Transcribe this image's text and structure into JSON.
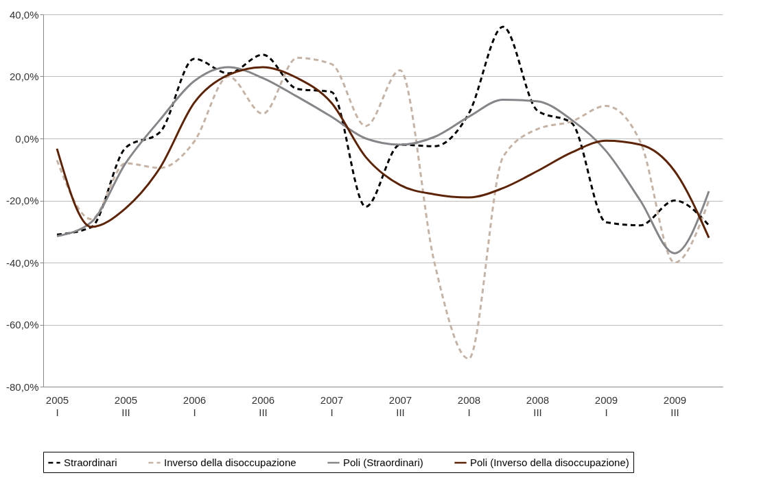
{
  "chart_data": {
    "type": "line",
    "categories": [
      "2005\nI",
      null,
      "2005\nIII",
      null,
      "2006\nI",
      null,
      "2006\nIII",
      null,
      "2007\nI",
      null,
      "2007\nIII",
      null,
      "2008\nI",
      null,
      "2008\nIII",
      null,
      "2009\nI",
      null,
      "2009\nIII",
      null
    ],
    "series": [
      {
        "name": "Straordinari",
        "color": "#000000",
        "line_style": "dashed",
        "values": [
          -31,
          -28.6,
          -3,
          2,
          25.7,
          21,
          27,
          16,
          15,
          -22,
          -2,
          -2.5,
          8,
          36,
          9,
          5,
          -27,
          -28,
          -20,
          -28
        ]
      },
      {
        "name": "Inverso della disoccupazione",
        "color": "#c5b3a5",
        "line_style": "dashed",
        "values": [
          -7,
          -26,
          -8,
          -9.5,
          -1,
          20,
          8,
          26,
          24,
          4,
          22,
          -40,
          -71,
          -6,
          3,
          5.5,
          10.5,
          -1,
          -40,
          -20
        ]
      },
      {
        "name": "Poli (Straordinari)",
        "color": "#86868a",
        "line_style": "solid",
        "values": [
          -31.5,
          -27,
          -8,
          6,
          18.5,
          23,
          19.5,
          13.5,
          7,
          0,
          -2,
          0.5,
          7,
          12.5,
          12,
          6,
          -4,
          -20,
          -37,
          -17
        ]
      },
      {
        "name": "Poli (Inverso della disoccupazione)",
        "color": "#5c2306",
        "line_style": "solid",
        "values": [
          -3.3,
          -28.5,
          -22.5,
          -9.5,
          11.5,
          20.5,
          23,
          19.5,
          11.5,
          -6,
          -15,
          -18,
          -19,
          -16,
          -10.5,
          -4.5,
          -0.7,
          -2,
          -10.5,
          -32
        ]
      }
    ],
    "ylim": [
      -80,
      40
    ],
    "yticks": [
      {
        "value": -80,
        "label": "-80,0%"
      },
      {
        "value": -60,
        "label": "-60,0%"
      },
      {
        "value": -40,
        "label": "-40,0%"
      },
      {
        "value": -20,
        "label": "-20,0%"
      },
      {
        "value": 0,
        "label": "0,0%"
      },
      {
        "value": 20,
        "label": "20,0%"
      },
      {
        "value": 40,
        "label": "40,0%"
      }
    ],
    "grid": "y",
    "legend": "bottom"
  }
}
